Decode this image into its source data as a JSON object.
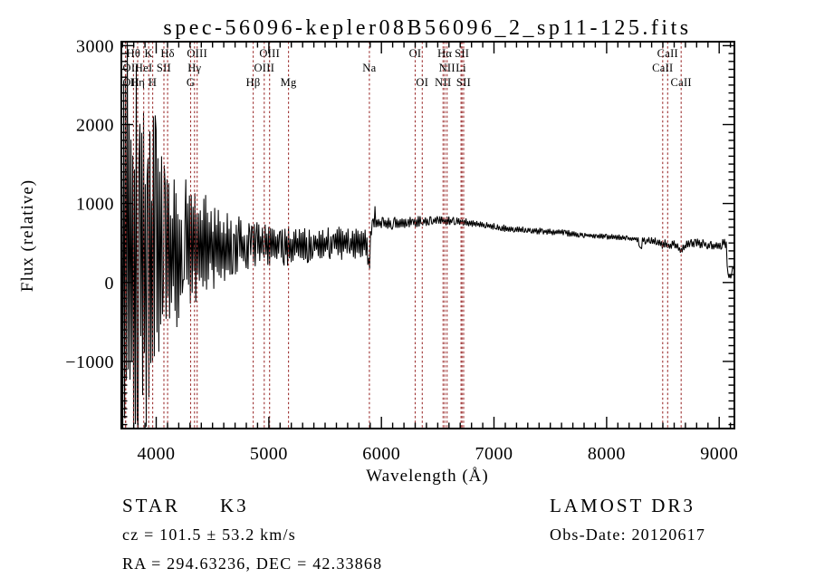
{
  "chart_data": {
    "type": "line",
    "title": "spec-56096-kepler08B56096_2_sp11-125.fits",
    "xlabel": "Wavelength (Å)",
    "ylabel": "Flux (relative)",
    "xlim": [
      3690,
      9135
    ],
    "ylim": [
      -1850,
      3050
    ],
    "xticks_major": [
      4000,
      5000,
      6000,
      7000,
      8000,
      9000
    ],
    "yticks_major": [
      -1000,
      0,
      1000,
      2000,
      3000
    ],
    "minor_tick_step_x": 100,
    "minor_tick_step_y": 100,
    "grid": false,
    "legend": "none",
    "line_color": "#000000",
    "marker_color": "#9e3232",
    "spectral_lines": [
      {
        "label": "Hθ",
        "wave": 3798,
        "row": 1
      },
      {
        "label": "K",
        "wave": 3933,
        "row": 1
      },
      {
        "label": "Hδ",
        "wave": 4101,
        "row": 1
      },
      {
        "label": "OIII",
        "wave": 4363,
        "row": 1
      },
      {
        "label": "OIII",
        "wave": 5007,
        "row": 1
      },
      {
        "label": "OI",
        "wave": 6300,
        "row": 1
      },
      {
        "label": "Hα",
        "wave": 6563,
        "row": 1
      },
      {
        "label": "SII",
        "wave": 6716,
        "row": 1
      },
      {
        "label": "CaII",
        "wave": 8542,
        "row": 1
      },
      {
        "label": "OII",
        "wave": 3727,
        "row": 2
      },
      {
        "label": "HeI",
        "wave": 3889,
        "row": 2
      },
      {
        "label": "SII",
        "wave": 4068,
        "row": 2
      },
      {
        "label": "Hγ",
        "wave": 4340,
        "row": 2
      },
      {
        "label": "OIII",
        "wave": 4959,
        "row": 2
      },
      {
        "label": "Na",
        "wave": 5893,
        "row": 2
      },
      {
        "label": "NII",
        "wave": 6583,
        "row": 2
      },
      {
        "label": "Li",
        "wave": 6707,
        "row": 2
      },
      {
        "label": "CaII",
        "wave": 8498,
        "row": 2
      },
      {
        "label": "OII",
        "wave": 3729,
        "row": 3
      },
      {
        "label": "Hη",
        "wave": 3835,
        "row": 3
      },
      {
        "label": "H",
        "wave": 3968,
        "row": 3
      },
      {
        "label": "G",
        "wave": 4305,
        "row": 3
      },
      {
        "label": "Hβ",
        "wave": 4861,
        "row": 3
      },
      {
        "label": "Mg",
        "wave": 5175,
        "row": 3
      },
      {
        "label": "OI",
        "wave": 6363,
        "row": 3
      },
      {
        "label": "NII",
        "wave": 6548,
        "row": 3
      },
      {
        "label": "SII",
        "wave": 6730,
        "row": 3
      },
      {
        "label": "CaII",
        "wave": 8662,
        "row": 3
      }
    ],
    "continuum": [
      [
        3695,
        350
      ],
      [
        3900,
        330
      ],
      [
        4000,
        360
      ],
      [
        4150,
        400
      ],
      [
        4300,
        420
      ],
      [
        4500,
        450
      ],
      [
        4700,
        460
      ],
      [
        4900,
        470
      ],
      [
        5100,
        465
      ],
      [
        5300,
        475
      ],
      [
        5500,
        490
      ],
      [
        5700,
        495
      ],
      [
        5860,
        480
      ],
      [
        5885,
        300
      ],
      [
        5893,
        110
      ],
      [
        5902,
        600
      ],
      [
        5920,
        720
      ],
      [
        5936,
        740
      ],
      [
        5941,
        1030
      ],
      [
        5947,
        745
      ],
      [
        6100,
        755
      ],
      [
        6300,
        770
      ],
      [
        6450,
        780
      ],
      [
        6563,
        785
      ],
      [
        6650,
        775
      ],
      [
        6800,
        755
      ],
      [
        7000,
        705
      ],
      [
        7200,
        672
      ],
      [
        7400,
        650
      ],
      [
        7600,
        632
      ],
      [
        7800,
        602
      ],
      [
        8000,
        582
      ],
      [
        8200,
        560
      ],
      [
        8280,
        545
      ],
      [
        8300,
        390
      ],
      [
        8320,
        535
      ],
      [
        8450,
        520
      ],
      [
        8498,
        465
      ],
      [
        8520,
        505
      ],
      [
        8542,
        455
      ],
      [
        8600,
        495
      ],
      [
        8662,
        405
      ],
      [
        8720,
        485
      ],
      [
        8800,
        505
      ],
      [
        8900,
        472
      ],
      [
        9000,
        468
      ],
      [
        9050,
        500
      ],
      [
        9066,
        490
      ],
      [
        9074,
        90
      ],
      [
        9090,
        80
      ],
      [
        9110,
        75
      ],
      [
        9120,
        230
      ],
      [
        9130,
        110
      ]
    ],
    "noise_envelope": [
      [
        3695,
        3765,
        3300
      ],
      [
        3765,
        3830,
        3100
      ],
      [
        3830,
        3885,
        2800
      ],
      [
        3885,
        3945,
        2300
      ],
      [
        3945,
        4005,
        1800
      ],
      [
        4005,
        4065,
        1500
      ],
      [
        4065,
        4135,
        1150
      ],
      [
        4135,
        4205,
        1000
      ],
      [
        4205,
        4285,
        900
      ],
      [
        4285,
        4365,
        800
      ],
      [
        4365,
        4455,
        700
      ],
      [
        4455,
        4555,
        560
      ],
      [
        4555,
        4655,
        450
      ],
      [
        4655,
        4755,
        380
      ],
      [
        4755,
        4905,
        320
      ],
      [
        4905,
        5055,
        280
      ],
      [
        5055,
        5255,
        255
      ],
      [
        5255,
        5455,
        230
      ],
      [
        5455,
        5655,
        215
      ],
      [
        5655,
        5880,
        200
      ],
      [
        5880,
        5910,
        60
      ],
      [
        5910,
        6105,
        90
      ],
      [
        6105,
        6355,
        75
      ],
      [
        6355,
        6705,
        60
      ],
      [
        6705,
        7105,
        50
      ],
      [
        7105,
        7705,
        42
      ],
      [
        7705,
        8305,
        38
      ],
      [
        8305,
        8705,
        55
      ],
      [
        8705,
        9005,
        60
      ],
      [
        9005,
        9070,
        65
      ],
      [
        9070,
        9135,
        35
      ]
    ],
    "noise_seed": 7,
    "sample_step": 8
  },
  "annotations": {
    "class_label": "STAR",
    "subclass": "K3",
    "survey": "LAMOST DR3",
    "cz": "cz = 101.5 ± 53.2 km/s",
    "obs_date": "Obs-Date: 20120617",
    "ra_dec": "RA = 294.63236, DEC =  42.33868"
  }
}
